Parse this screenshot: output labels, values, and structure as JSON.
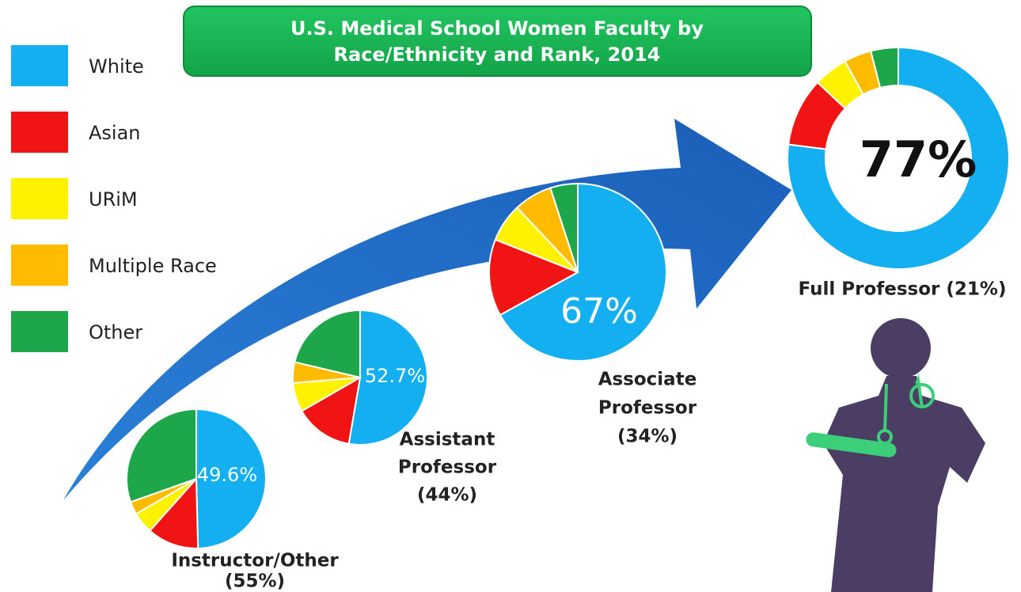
{
  "title": [
    "U.S. Medical School Women Faculty by",
    "Race/Ethnicity and Rank, 2014"
  ],
  "legend": {
    "categories": [
      "White",
      "Asian",
      "URiM",
      "Multiple Race",
      "Other"
    ],
    "colors": [
      "#13aff0",
      "#f01414",
      "#fff200",
      "#ffbb00",
      "#1ea64b"
    ]
  },
  "chart_data": [
    {
      "type": "pie",
      "title": [
        "Instructor/Other",
        "(55%)"
      ],
      "values": [
        49.6,
        12,
        5,
        3,
        30.4
      ],
      "value_labels": [
        "49.6%",
        null,
        null,
        null,
        null
      ]
    },
    {
      "type": "pie",
      "title": [
        "Assistant",
        "Professor",
        "(44%)"
      ],
      "values": [
        52.7,
        14,
        7,
        5,
        21.3
      ],
      "value_labels": [
        "52.7%",
        null,
        null,
        null,
        null
      ]
    },
    {
      "type": "pie",
      "title": [
        "Associate",
        "Professor",
        "(34%)"
      ],
      "values": [
        67,
        14,
        7,
        7,
        5
      ],
      "value_labels": [
        "67%",
        null,
        null,
        null,
        null
      ]
    },
    {
      "type": "donut",
      "title": [
        "Full Professor (21%)"
      ],
      "values": [
        77,
        10,
        5,
        4,
        4
      ],
      "value_labels": [
        "77%",
        null,
        null,
        null,
        null
      ]
    }
  ]
}
